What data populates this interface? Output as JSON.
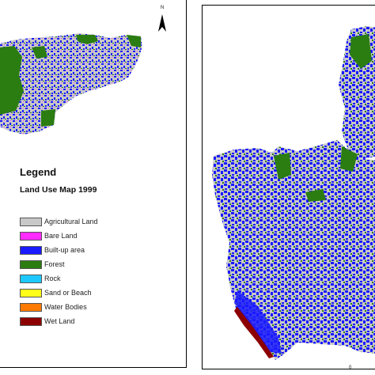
{
  "legend": {
    "title": "Legend",
    "subtitle": "Land Use Map 1999",
    "items": [
      {
        "label": "Agricultural Land",
        "color": "#c8c8c8"
      },
      {
        "label": "Bare Land",
        "color": "#ff2bff"
      },
      {
        "label": "Built-up area",
        "color": "#1a1aff"
      },
      {
        "label": "Forest",
        "color": "#2b7d11"
      },
      {
        "label": "Rock",
        "color": "#1ec8ff"
      },
      {
        "label": "Sand or Beach",
        "color": "#ffff1a"
      },
      {
        "label": "Water Bodies",
        "color": "#ff7a00"
      },
      {
        "label": "Wet Land",
        "color": "#8c0000"
      }
    ]
  },
  "north_arrow": {
    "letter": "N"
  },
  "scale_bar": {
    "label": "0"
  }
}
